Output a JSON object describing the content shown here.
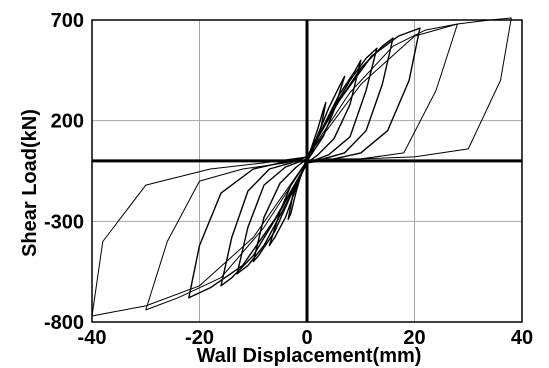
{
  "chart_data": {
    "type": "line",
    "xlabel": "Wall Displacement(mm)",
    "ylabel": "Shear Load(kN)",
    "xlim": [
      -40,
      40
    ],
    "ylim": [
      -800,
      700
    ],
    "x_ticks": [
      -40,
      -20,
      0,
      20,
      40
    ],
    "x_tick_labels": [
      "-40",
      "-20",
      "0",
      "20",
      "40"
    ],
    "y_ticks": [
      -800,
      -300,
      200,
      700
    ],
    "y_tick_labels": [
      "-800",
      "-300",
      "200",
      "700"
    ],
    "grid": true,
    "legend": "none",
    "colors": {
      "curve": "#000000",
      "grid": "#a6a6a6",
      "axis": "#000000"
    },
    "series": [
      {
        "x": [
          0,
          1,
          2,
          3,
          3.5,
          2.5,
          1,
          0,
          -1,
          -2,
          -3,
          -3.5,
          -2.5,
          -1,
          0
        ],
        "y": [
          0,
          80,
          160,
          250,
          290,
          150,
          50,
          20,
          -60,
          -150,
          -260,
          -290,
          -150,
          -60,
          0
        ]
      },
      {
        "x": [
          0,
          2,
          4,
          6,
          7,
          5,
          3,
          1,
          0,
          -2,
          -4,
          -6,
          -7,
          -5,
          -3,
          -1,
          0
        ],
        "y": [
          0,
          130,
          260,
          370,
          420,
          250,
          120,
          40,
          0,
          -130,
          -280,
          -380,
          -420,
          -250,
          -120,
          -40,
          0
        ]
      },
      {
        "x": [
          0,
          3,
          6,
          9,
          10,
          8,
          5,
          2,
          0,
          -3,
          -6,
          -9,
          -10,
          -8,
          -5,
          -2,
          0
        ],
        "y": [
          10,
          170,
          330,
          450,
          500,
          280,
          110,
          30,
          -10,
          -170,
          -350,
          -470,
          -500,
          -280,
          -110,
          -30,
          10
        ]
      },
      {
        "x": [
          0,
          4,
          8,
          11,
          13,
          11,
          8,
          4,
          0,
          -4,
          -8,
          -11,
          -13,
          -11,
          -8,
          -4,
          0
        ],
        "y": [
          10,
          220,
          400,
          510,
          560,
          350,
          120,
          30,
          -10,
          -220,
          -420,
          -520,
          -560,
          -330,
          -120,
          -30,
          10
        ]
      },
      {
        "x": [
          0,
          5,
          10,
          14,
          16,
          14,
          11,
          7,
          3,
          0,
          -5,
          -10,
          -14,
          -16,
          -14,
          -11,
          -7,
          -3,
          0
        ],
        "y": [
          20,
          260,
          460,
          570,
          610,
          380,
          150,
          40,
          10,
          -10,
          -250,
          -470,
          -580,
          -620,
          -380,
          -150,
          -40,
          -10,
          20
        ]
      },
      {
        "x": [
          0,
          6,
          12,
          17,
          21,
          19,
          15,
          10,
          5,
          0,
          -6,
          -12,
          -18,
          -22,
          -20,
          -16,
          -10,
          -5,
          0
        ],
        "y": [
          20,
          300,
          520,
          620,
          660,
          400,
          150,
          40,
          10,
          -10,
          -290,
          -520,
          -630,
          -680,
          -420,
          -160,
          -40,
          -10,
          20
        ]
      },
      {
        "x": [
          0,
          8,
          16,
          22,
          26,
          28,
          24,
          18,
          10,
          3,
          0,
          -8,
          -16,
          -24,
          -28,
          -30,
          -26,
          -20,
          -12,
          -4,
          0
        ],
        "y": [
          20,
          340,
          570,
          650,
          670,
          680,
          350,
          40,
          10,
          10,
          0,
          -330,
          -580,
          -680,
          -720,
          -740,
          -400,
          -100,
          -40,
          -10,
          20
        ]
      },
      {
        "x": [
          0,
          10,
          20,
          28,
          34,
          38,
          36,
          30,
          20,
          10,
          0,
          -10,
          -20,
          -30,
          -36,
          -40,
          -38,
          -30,
          -18,
          -8,
          0
        ],
        "y": [
          20,
          380,
          620,
          680,
          700,
          710,
          400,
          60,
          20,
          10,
          0,
          -380,
          -620,
          -720,
          -750,
          -770,
          -400,
          -120,
          -40,
          -10,
          20
        ]
      }
    ]
  }
}
